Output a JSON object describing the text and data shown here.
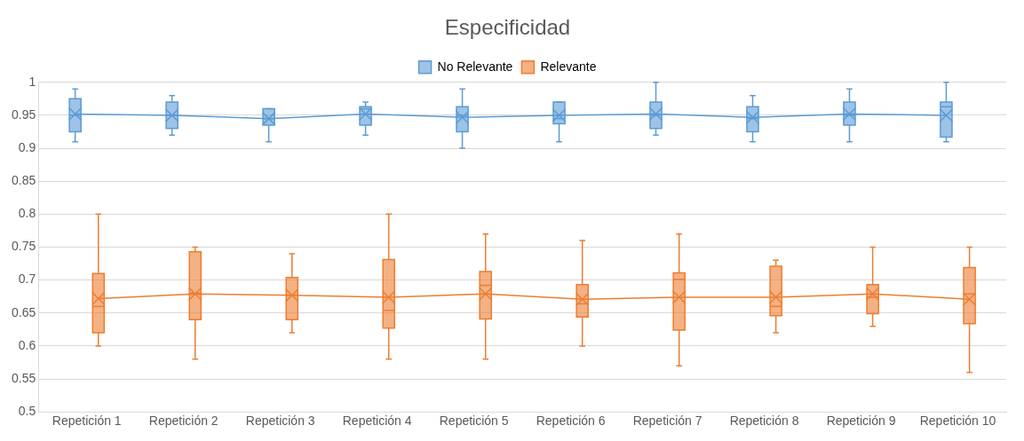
{
  "chart_data": {
    "type": "box",
    "title": "Especificidad",
    "categories": [
      "Repetición 1",
      "Repetición 2",
      "Repetición 3",
      "Repetición 4",
      "Repetición 5",
      "Repetición 6",
      "Repetición 7",
      "Repetición 8",
      "Repetición 9",
      "Repetición 10"
    ],
    "series": [
      {
        "name": "No Relevante",
        "color": "#5b9bd5",
        "boxes": [
          {
            "low": 0.91,
            "q1": 0.925,
            "median": 0.95,
            "q3": 0.975,
            "high": 0.99,
            "mean": 0.952
          },
          {
            "low": 0.92,
            "q1": 0.93,
            "median": 0.95,
            "q3": 0.97,
            "high": 0.98,
            "mean": 0.95
          },
          {
            "low": 0.91,
            "q1": 0.935,
            "median": 0.945,
            "q3": 0.96,
            "high": 0.96,
            "mean": 0.945
          },
          {
            "low": 0.92,
            "q1": 0.935,
            "median": 0.96,
            "q3": 0.963,
            "high": 0.97,
            "mean": 0.952
          },
          {
            "low": 0.9,
            "q1": 0.925,
            "median": 0.95,
            "q3": 0.963,
            "high": 0.99,
            "mean": 0.947
          },
          {
            "low": 0.91,
            "q1": 0.937,
            "median": 0.945,
            "q3": 0.97,
            "high": 0.97,
            "mean": 0.95
          },
          {
            "low": 0.92,
            "q1": 0.93,
            "median": 0.95,
            "q3": 0.97,
            "high": 1,
            "mean": 0.952
          },
          {
            "low": 0.91,
            "q1": 0.925,
            "median": 0.945,
            "q3": 0.963,
            "high": 0.98,
            "mean": 0.947
          },
          {
            "low": 0.91,
            "q1": 0.935,
            "median": 0.95,
            "q3": 0.97,
            "high": 0.99,
            "mean": 0.952
          },
          {
            "low": 0.91,
            "q1": 0.917,
            "median": 0.963,
            "q3": 0.97,
            "high": 1,
            "mean": 0.95
          }
        ]
      },
      {
        "name": "Relevante",
        "color": "#ed7d31",
        "boxes": [
          {
            "low": 0.6,
            "q1": 0.62,
            "median": 0.66,
            "q3": 0.71,
            "high": 0.8,
            "mean": 0.672
          },
          {
            "low": 0.58,
            "q1": 0.64,
            "median": 0.68,
            "q3": 0.743,
            "high": 0.75,
            "mean": 0.679
          },
          {
            "low": 0.62,
            "q1": 0.64,
            "median": 0.677,
            "q3": 0.704,
            "high": 0.74,
            "mean": 0.677
          },
          {
            "low": 0.58,
            "q1": 0.627,
            "median": 0.654,
            "q3": 0.731,
            "high": 0.8,
            "mean": 0.674
          },
          {
            "low": 0.58,
            "q1": 0.641,
            "median": 0.692,
            "q3": 0.713,
            "high": 0.77,
            "mean": 0.679
          },
          {
            "low": 0.6,
            "q1": 0.644,
            "median": 0.664,
            "q3": 0.693,
            "high": 0.76,
            "mean": 0.671
          },
          {
            "low": 0.57,
            "q1": 0.624,
            "median": 0.701,
            "q3": 0.711,
            "high": 0.77,
            "mean": 0.674
          },
          {
            "low": 0.62,
            "q1": 0.646,
            "median": 0.66,
            "q3": 0.721,
            "high": 0.73,
            "mean": 0.674
          },
          {
            "low": 0.63,
            "q1": 0.649,
            "median": 0.674,
            "q3": 0.693,
            "high": 0.75,
            "mean": 0.679
          },
          {
            "low": 0.56,
            "q1": 0.634,
            "median": 0.679,
            "q3": 0.719,
            "high": 0.75,
            "mean": 0.671
          }
        ]
      },
      {
        "type": "line",
        "marker": "none",
        "color": "#5b9bd5",
        "values": [
          0.952,
          0.95,
          0.945,
          0.952,
          0.947,
          0.95,
          0.952,
          0.947,
          0.952,
          0.95
        ]
      },
      {
        "type": "line",
        "marker": "none",
        "color": "#ed7d31",
        "values": [
          0.672,
          0.679,
          0.677,
          0.674,
          0.679,
          0.671,
          0.674,
          0.674,
          0.679,
          0.671
        ]
      }
    ],
    "ylim": [
      0.5,
      1
    ],
    "yticks": [
      0.5,
      0.55,
      0.6,
      0.65,
      0.7,
      0.75,
      0.8,
      0.85,
      0.9,
      0.95,
      1
    ],
    "grid": "y",
    "legend": "top",
    "marker": "cross"
  }
}
